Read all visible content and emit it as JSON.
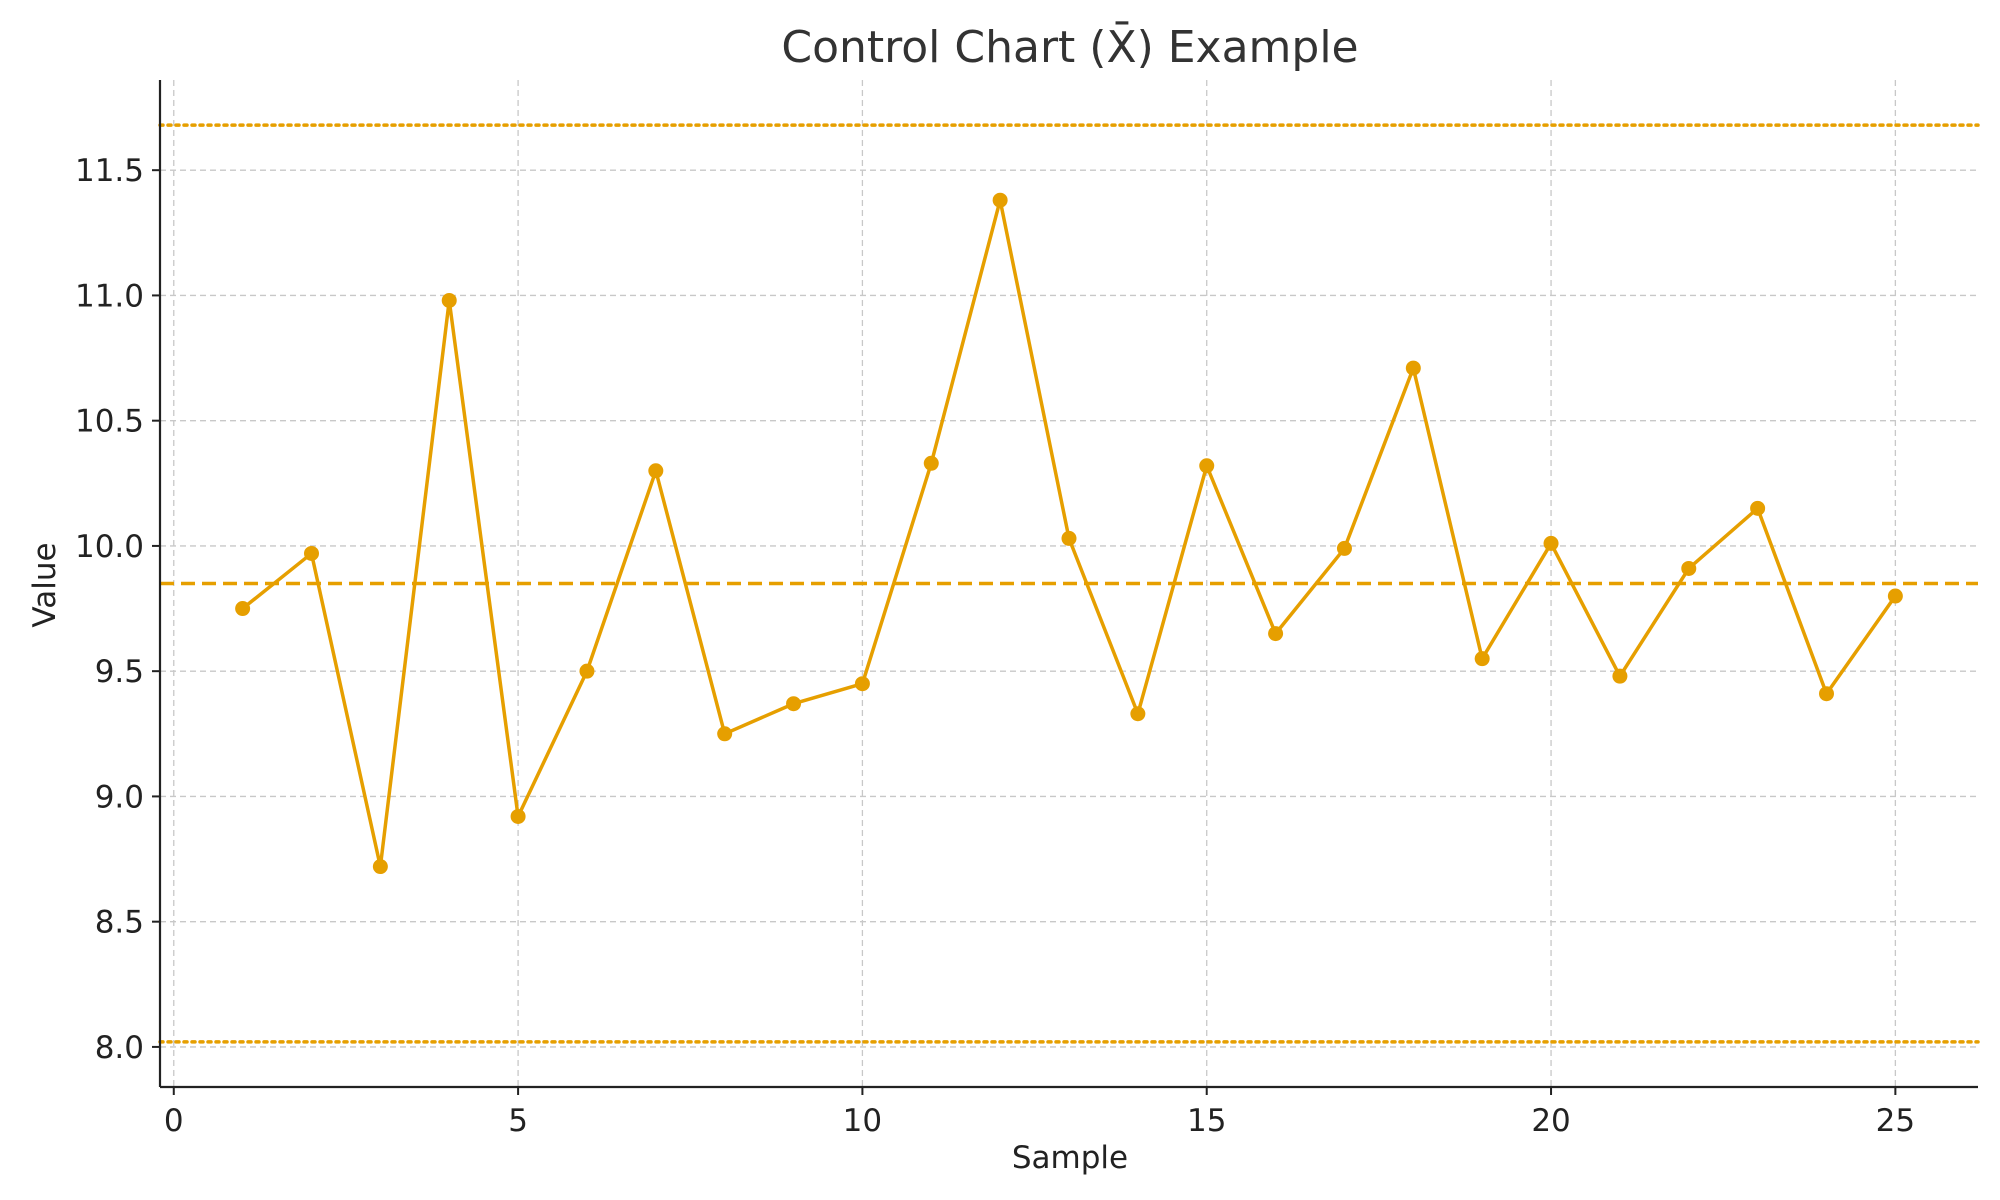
{
  "chart_data": {
    "type": "line",
    "title": "Control Chart (X̄) Example",
    "xlabel": "Sample",
    "ylabel": "Value",
    "xlim": [
      -0.2,
      26.2
    ],
    "ylim": [
      7.84,
      11.86
    ],
    "xticks": [
      0,
      5,
      10,
      15,
      20,
      25
    ],
    "xtick_labels": [
      "0",
      "5",
      "10",
      "15",
      "20",
      "25"
    ],
    "yticks": [
      8.0,
      8.5,
      9.0,
      9.5,
      10.0,
      10.5,
      11.0,
      11.5
    ],
    "ytick_labels": [
      "8.0",
      "8.5",
      "9.0",
      "9.5",
      "10.0",
      "10.5",
      "11.0",
      "11.5"
    ],
    "grid": true,
    "color": "#e69f00",
    "series": [
      {
        "x": [
          1,
          2,
          3,
          4,
          5,
          6,
          7,
          8,
          9,
          10,
          11,
          12,
          13,
          14,
          15,
          16,
          17,
          18,
          19,
          20,
          21,
          22,
          23,
          24,
          25
        ],
        "values": [
          9.75,
          9.97,
          8.72,
          10.98,
          8.92,
          9.5,
          10.3,
          9.25,
          9.37,
          9.45,
          10.33,
          11.38,
          10.03,
          9.33,
          10.32,
          9.65,
          9.99,
          10.71,
          9.55,
          10.01,
          9.48,
          9.91,
          10.15,
          9.41,
          9.8
        ]
      }
    ],
    "reference_lines": [
      {
        "y": 11.68,
        "style": "dotted"
      },
      {
        "y": 9.85,
        "style": "dashed"
      },
      {
        "y": 8.02,
        "style": "dotted"
      }
    ]
  }
}
